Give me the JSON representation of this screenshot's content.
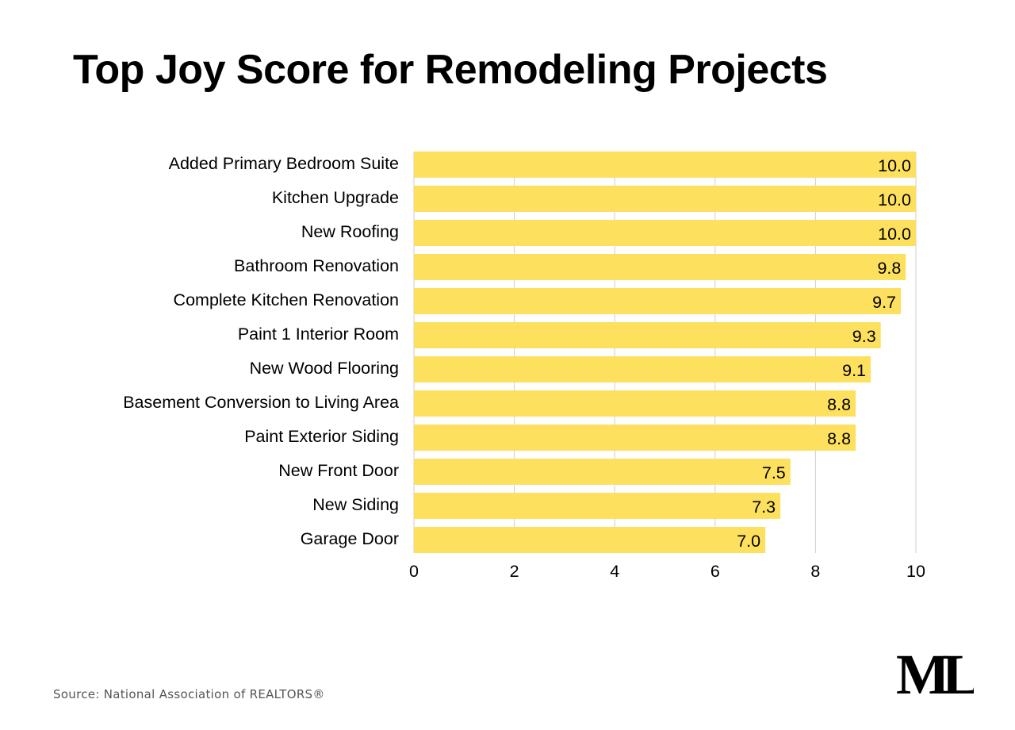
{
  "title": "Top Joy Score for Remodeling Projects",
  "source": "Source: National Association of REALTORS®",
  "logo_text": "ML",
  "colors": {
    "bar": "#FDE05E",
    "grid": "#cfcfcf",
    "text": "#000000"
  },
  "chart_data": {
    "type": "bar",
    "orientation": "horizontal",
    "categories": [
      "Added Primary Bedroom Suite",
      "Kitchen Upgrade",
      "New Roofing",
      "Bathroom Renovation",
      "Complete Kitchen Renovation",
      "Paint 1 Interior Room",
      "New Wood Flooring",
      "Basement Conversion to Living Area",
      "Paint Exterior Siding",
      "New Front Door",
      "New Siding",
      "Garage Door"
    ],
    "values": [
      10.0,
      10.0,
      10.0,
      9.8,
      9.7,
      9.3,
      9.1,
      8.8,
      8.8,
      7.5,
      7.3,
      7.0
    ],
    "value_labels": [
      "10.0",
      "10.0",
      "10.0",
      "9.8",
      "9.7",
      "9.3",
      "9.1",
      "8.8",
      "8.8",
      "7.5",
      "7.3",
      "7.0"
    ],
    "xlim": [
      0,
      10
    ],
    "xticks": [
      "0",
      "2",
      "4",
      "6",
      "8",
      "10"
    ],
    "grid": true,
    "xlabel": "",
    "ylabel": ""
  }
}
